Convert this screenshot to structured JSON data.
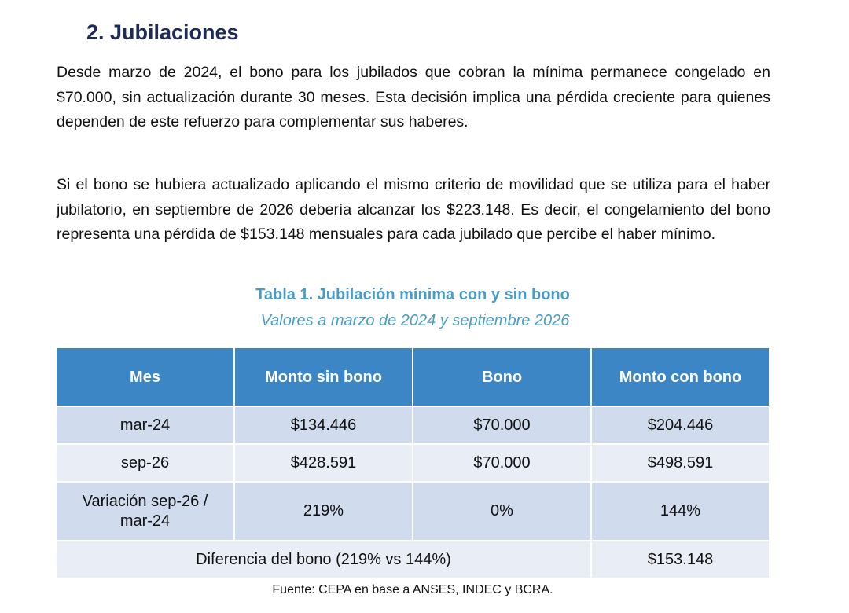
{
  "heading": "2. Jubilaciones",
  "paragraphs": [
    "Desde marzo de 2024, el bono para los jubilados que cobran la mínima permanece congelado en $70.000, sin actualización durante 30 meses. Esta decisión implica una pérdida creciente para quienes dependen de este refuerzo para complementar sus haberes.",
    "Si el bono se hubiera actualizado aplicando el mismo criterio de movilidad que se utiliza para el haber jubilatorio, en septiembre de 2026 debería alcanzar los $223.148. Es decir, el congelamiento del bono representa una pérdida de $153.148 mensuales para cada jubilado que percibe el haber mínimo."
  ],
  "table": {
    "title": "Tabla 1. Jubilación mínima con y sin bono",
    "subtitle": "Valores a marzo de 2024 y septiembre 2026",
    "headers": [
      "Mes",
      "Monto sin bono",
      "Bono",
      "Monto con bono"
    ],
    "rows": [
      [
        "mar-24",
        "$134.446",
        "$70.000",
        "$204.446"
      ],
      [
        "sep-26",
        "$428.591",
        "$70.000",
        "$498.591"
      ],
      [
        "Variación sep-26 / mar-24",
        "219%",
        "0%",
        "144%"
      ]
    ],
    "footer_row": {
      "label": "Diferencia del bono (219% vs 144%)",
      "value": "$153.148"
    },
    "source": "Fuente: CEPA en base a ANSES, INDEC y BCRA."
  }
}
